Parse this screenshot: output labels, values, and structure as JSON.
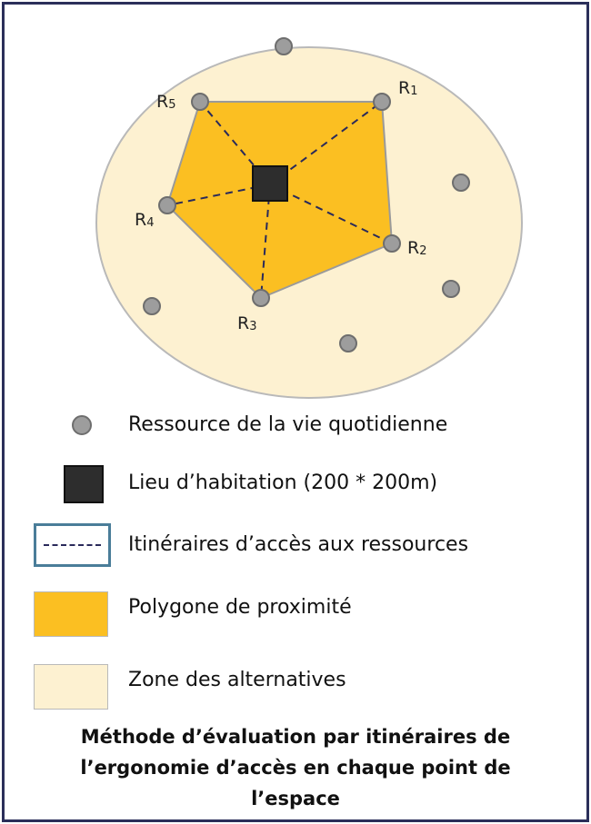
{
  "diagram": {
    "resources": [
      {
        "id": "R1",
        "letter": "R",
        "num": "1"
      },
      {
        "id": "R2",
        "letter": "R",
        "num": "2"
      },
      {
        "id": "R3",
        "letter": "R",
        "num": "3"
      },
      {
        "id": "R4",
        "letter": "R",
        "num": "4"
      },
      {
        "id": "R5",
        "letter": "R",
        "num": "5"
      }
    ]
  },
  "legend": {
    "items": [
      {
        "label": "Ressource de la vie quotidienne"
      },
      {
        "label": "Lieu d’habitation (200 * 200m)"
      },
      {
        "label": "Itinéraires d’accès aux ressources"
      },
      {
        "label": "Polygone de proximité"
      },
      {
        "label": "Zone des alternatives"
      }
    ]
  },
  "caption": {
    "line1": "Méthode d’évaluation par itinéraires de",
    "line2": "l’ergonomie d’accès en chaque point de",
    "line3": "l’espace"
  },
  "colors": {
    "zone": "#fdf1d1",
    "polygon": "#fbbf22",
    "resource": "#9d9d9d",
    "habitation": "#2d2d2d",
    "route": "#2a2a5a",
    "frame": "#2b2f5a",
    "legend_route_border": "#4a7d99"
  }
}
